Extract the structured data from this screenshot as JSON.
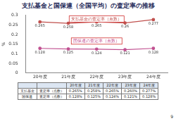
{
  "title": "支払基金と国保連（全国平均）の査定率の推移",
  "chart_data": {
    "type": "line",
    "y_label": "%",
    "categories": [
      "20年度",
      "21年度",
      "22年度",
      "23年度",
      "24年度"
    ],
    "series": [
      {
        "name": "支払基金の査定率（点数）",
        "color": "#c0504d",
        "marker": "circle",
        "values": [
          0.265,
          0.258,
          0.265,
          0.26,
          0.277
        ]
      },
      {
        "name": "国保連の査定率（点数）",
        "color": "#c05090",
        "marker": "circle",
        "values": [
          0.128,
          0.125,
          0.124,
          0.121,
          0.128
        ]
      }
    ],
    "ylim": [
      0,
      0.3
    ],
    "yticks": [
      0,
      0.05,
      0.1,
      0.15,
      0.2,
      0.25,
      0.3
    ],
    "grid": false,
    "data_labels": true
  },
  "table": {
    "header": [
      "",
      "",
      "20年度",
      "21年度",
      "22年度",
      "23年度",
      "24年度"
    ],
    "rows": [
      [
        "支払基金",
        "査定率（点数）",
        "0.265%",
        "0.258%",
        "0.265%",
        "0.260%",
        "0.277%"
      ],
      [
        "国保連",
        "査定率（点数）",
        "0.128%",
        "0.125%",
        "0.124%",
        "0.121%",
        "0.128%"
      ]
    ]
  },
  "page_number": "9"
}
